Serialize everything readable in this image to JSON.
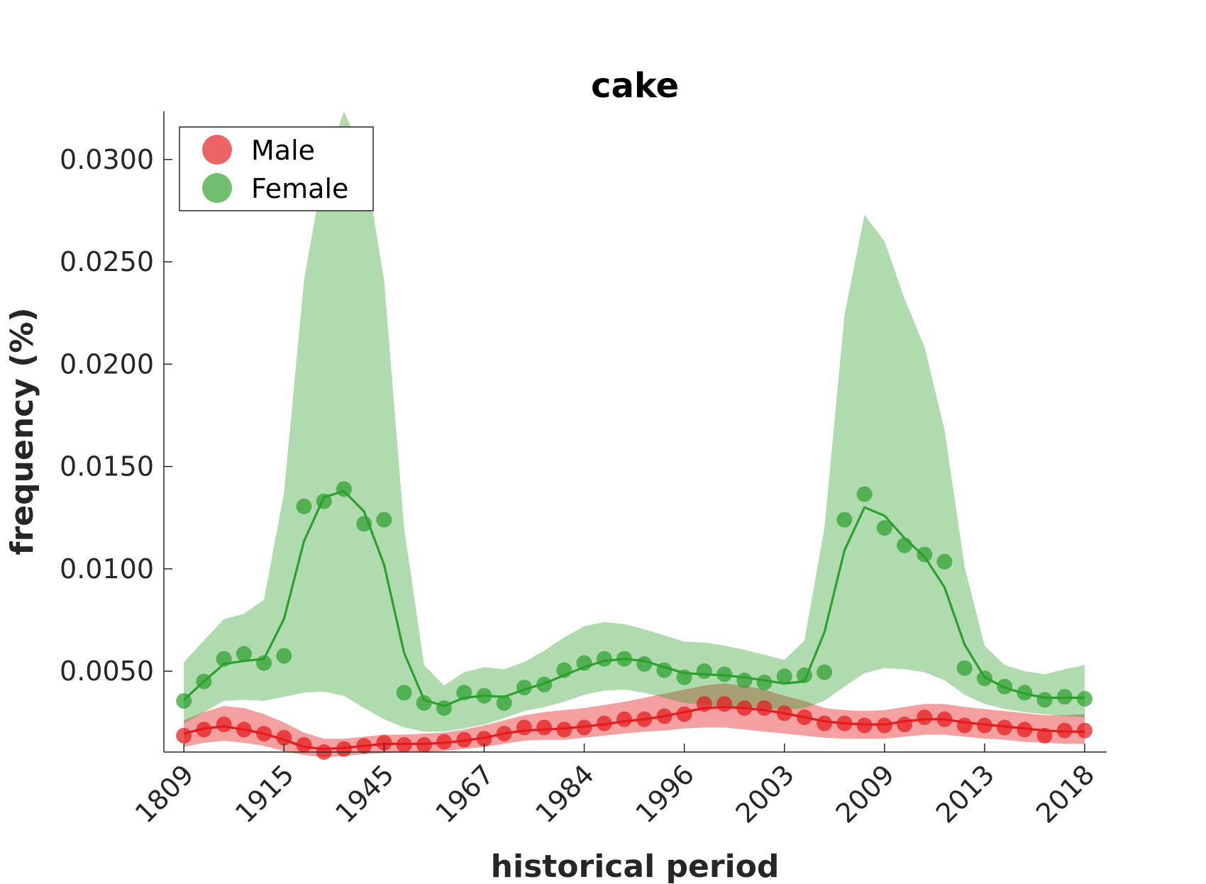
{
  "chart_data": {
    "type": "line",
    "title": "cake",
    "xlabel": "historical period",
    "ylabel": "frequency (%)",
    "x_tick_labels": [
      "1809",
      "1915",
      "1945",
      "1967",
      "1984",
      "1996",
      "2003",
      "2009",
      "2013",
      "2018"
    ],
    "x_tick_index": [
      0,
      5,
      10,
      15,
      20,
      25,
      30,
      35,
      40,
      45
    ],
    "x_range": [
      -1,
      46.1
    ],
    "y_ticks": [
      0.005,
      0.01,
      0.015,
      0.02,
      0.025,
      0.03
    ],
    "y_tick_labels": [
      "0.0050",
      "0.0100",
      "0.0150",
      "0.0200",
      "0.0250",
      "0.0300"
    ],
    "ylim": [
      0.00105,
      0.03235
    ],
    "legend": {
      "position": "top-left",
      "entries": [
        "Male",
        "Female"
      ]
    },
    "grid": false,
    "series": [
      {
        "name": "Male",
        "color": "#e41a1c",
        "marker_color": "#ee6266",
        "band_color": "#f4a0a2",
        "points": [
          0.00185,
          0.00215,
          0.0024,
          0.00215,
          0.00195,
          0.00175,
          0.0014,
          0.00105,
          0.0012,
          0.00135,
          0.0015,
          0.0014,
          0.0014,
          0.00155,
          0.00165,
          0.0017,
          0.00195,
          0.00225,
          0.00225,
          0.00215,
          0.00225,
          0.00245,
          0.00265,
          0.00265,
          0.0028,
          0.0029,
          0.0034,
          0.0034,
          0.0032,
          0.0032,
          0.00295,
          0.00275,
          0.00245,
          0.00245,
          0.00235,
          0.00235,
          0.0024,
          0.00275,
          0.00265,
          0.00235,
          0.00235,
          0.00225,
          0.00215,
          0.00185,
          0.0021,
          0.0021
        ],
        "line": [
          0.00195,
          0.0022,
          0.0023,
          0.00215,
          0.00195,
          0.00165,
          0.0013,
          0.0012,
          0.00125,
          0.00135,
          0.00145,
          0.00145,
          0.00145,
          0.0015,
          0.0016,
          0.00175,
          0.00195,
          0.0021,
          0.00215,
          0.0022,
          0.0023,
          0.0024,
          0.00255,
          0.00265,
          0.0028,
          0.003,
          0.0032,
          0.00325,
          0.0032,
          0.0031,
          0.00295,
          0.00275,
          0.00255,
          0.00245,
          0.0024,
          0.0024,
          0.00255,
          0.00265,
          0.00265,
          0.0025,
          0.0024,
          0.0023,
          0.0022,
          0.0021,
          0.00205,
          0.00205
        ],
        "band_upper": [
          0.0026,
          0.003,
          0.0033,
          0.0032,
          0.0029,
          0.0025,
          0.002,
          0.0017,
          0.0017,
          0.0018,
          0.0019,
          0.0019,
          0.00195,
          0.002,
          0.00215,
          0.00235,
          0.0026,
          0.00285,
          0.003,
          0.0031,
          0.0032,
          0.00335,
          0.0035,
          0.0037,
          0.0039,
          0.0041,
          0.0043,
          0.0044,
          0.0043,
          0.0041,
          0.0038,
          0.00355,
          0.0032,
          0.0031,
          0.00305,
          0.0031,
          0.00325,
          0.0034,
          0.0034,
          0.00325,
          0.00315,
          0.00305,
          0.00295,
          0.00285,
          0.00285,
          0.0029
        ],
        "band_lower": [
          0.0013,
          0.0015,
          0.0016,
          0.0015,
          0.00135,
          0.0011,
          0.0009,
          0.0008,
          0.00085,
          0.00095,
          0.001,
          0.00105,
          0.00105,
          0.0011,
          0.0012,
          0.0013,
          0.00145,
          0.0016,
          0.00165,
          0.00165,
          0.00175,
          0.00185,
          0.00195,
          0.00205,
          0.0021,
          0.0022,
          0.00225,
          0.00225,
          0.00215,
          0.00205,
          0.00195,
          0.00185,
          0.00175,
          0.0017,
          0.0017,
          0.0017,
          0.0018,
          0.0019,
          0.0019,
          0.0018,
          0.0017,
          0.00165,
          0.00155,
          0.0015,
          0.00145,
          0.00145
        ]
      },
      {
        "name": "Female",
        "color": "#2ca02c",
        "marker_color": "#5fb35f",
        "band_color": "#acd9a6",
        "points": [
          0.00355,
          0.0045,
          0.0056,
          0.00585,
          0.0054,
          0.00575,
          0.01305,
          0.0133,
          0.0139,
          0.0122,
          0.0124,
          0.00395,
          0.00345,
          0.0032,
          0.00395,
          0.0038,
          0.00345,
          0.0042,
          0.00435,
          0.00505,
          0.0054,
          0.0056,
          0.0056,
          0.00535,
          0.00505,
          0.0047,
          0.005,
          0.00485,
          0.00455,
          0.00445,
          0.00475,
          0.0048,
          0.00495,
          0.0124,
          0.01365,
          0.012,
          0.01115,
          0.0107,
          0.01035,
          0.00515,
          0.00465,
          0.00425,
          0.00395,
          0.0036,
          0.00375,
          0.00365
        ],
        "line": [
          0.0036,
          0.0045,
          0.00535,
          0.0055,
          0.0056,
          0.00755,
          0.01135,
          0.0135,
          0.0138,
          0.0128,
          0.0102,
          0.0059,
          0.0036,
          0.0033,
          0.0037,
          0.0038,
          0.00375,
          0.0041,
          0.0044,
          0.0048,
          0.0052,
          0.0055,
          0.0056,
          0.0055,
          0.0052,
          0.0049,
          0.00485,
          0.0048,
          0.0047,
          0.00455,
          0.0044,
          0.0045,
          0.0069,
          0.0109,
          0.013,
          0.0126,
          0.0115,
          0.0106,
          0.0091,
          0.0063,
          0.0047,
          0.0042,
          0.0039,
          0.0037,
          0.0037,
          0.0037
        ],
        "band_upper": [
          0.00545,
          0.0065,
          0.00755,
          0.0078,
          0.0085,
          0.0137,
          0.0241,
          0.0296,
          0.03235,
          0.0301,
          0.0241,
          0.012,
          0.0053,
          0.0043,
          0.00495,
          0.0052,
          0.0051,
          0.00545,
          0.006,
          0.00665,
          0.0072,
          0.0074,
          0.0073,
          0.00705,
          0.00675,
          0.00645,
          0.0064,
          0.00625,
          0.00605,
          0.0058,
          0.00555,
          0.0065,
          0.012,
          0.0224,
          0.0273,
          0.026,
          0.0232,
          0.02085,
          0.0168,
          0.0101,
          0.00625,
          0.0053,
          0.005,
          0.00485,
          0.0051,
          0.0053
        ],
        "band_lower": [
          0.00245,
          0.003,
          0.00355,
          0.0036,
          0.00355,
          0.00375,
          0.00395,
          0.004,
          0.0038,
          0.0032,
          0.00265,
          0.00225,
          0.00205,
          0.00205,
          0.0022,
          0.0024,
          0.0027,
          0.00305,
          0.00325,
          0.0035,
          0.00385,
          0.00405,
          0.0041,
          0.00395,
          0.0037,
          0.00345,
          0.00335,
          0.0033,
          0.00325,
          0.0032,
          0.0031,
          0.0032,
          0.00355,
          0.00425,
          0.0049,
          0.00515,
          0.0051,
          0.00495,
          0.00455,
          0.00385,
          0.0034,
          0.00315,
          0.003,
          0.0029,
          0.0028,
          0.00275
        ]
      }
    ]
  }
}
